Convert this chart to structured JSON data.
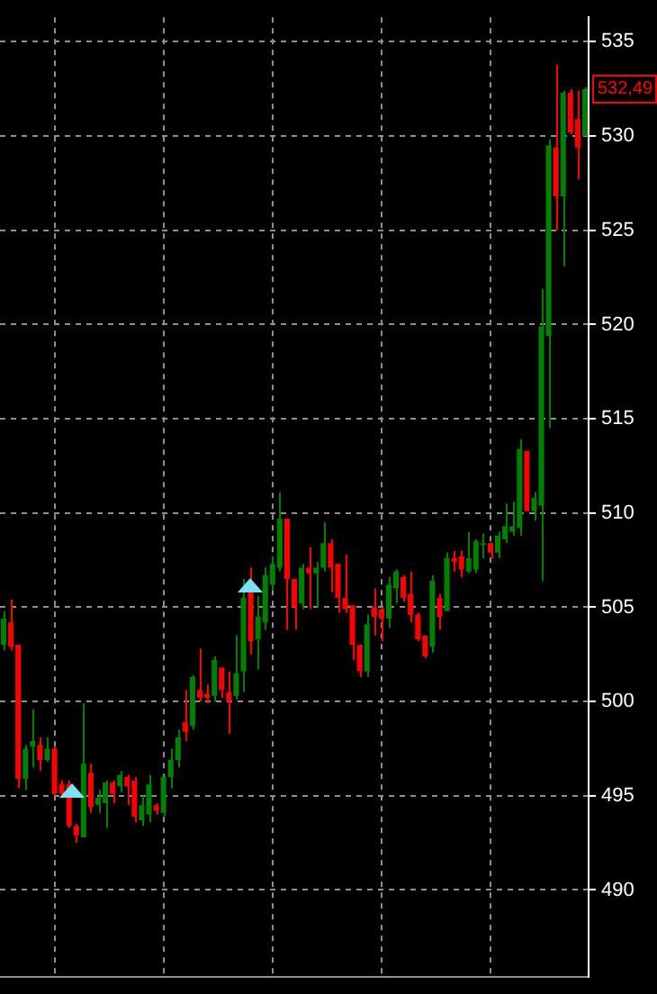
{
  "chart_data": {
    "type": "candlestick",
    "categories": [
      null,
      null,
      null,
      null,
      null,
      null,
      null,
      null,
      null,
      null,
      null,
      null,
      null,
      null,
      null,
      null,
      null,
      null,
      null,
      null,
      null,
      null,
      null,
      null,
      null,
      null,
      null,
      null,
      null,
      null,
      null,
      null,
      null,
      null,
      null,
      null,
      null,
      null,
      null,
      null,
      null,
      null,
      null,
      null,
      null,
      null,
      null,
      null,
      null,
      null,
      null,
      null,
      null,
      null,
      null,
      null,
      null,
      null,
      null,
      null,
      null,
      null,
      null,
      null,
      null,
      null,
      null,
      null,
      null,
      null,
      null,
      null,
      null,
      null,
      null,
      null,
      null,
      null,
      null,
      null,
      null
    ],
    "ohlc": [
      [
        503.0,
        504.8,
        502.7,
        504.4
      ],
      [
        504.2,
        505.4,
        502.7,
        502.9
      ],
      [
        503.0,
        503.0,
        495.4,
        495.9
      ],
      [
        495.9,
        497.7,
        495.3,
        497.5
      ],
      [
        497.6,
        499.6,
        496.5,
        497.9
      ],
      [
        497.7,
        498.1,
        496.3,
        496.9
      ],
      [
        496.9,
        498.1,
        496.8,
        497.5
      ],
      [
        497.5,
        497.6,
        495.0,
        495.1
      ],
      [
        495.6,
        495.8,
        495.0,
        495.1
      ],
      [
        495.6,
        495.8,
        493.3,
        493.4
      ],
      [
        493.4,
        493.5,
        492.5,
        492.9
      ],
      [
        492.8,
        499.9,
        492.8,
        496.7
      ],
      [
        496.2,
        496.7,
        494.1,
        494.4
      ],
      [
        494.5,
        495.3,
        494.1,
        494.9
      ],
      [
        494.6,
        495.8,
        493.3,
        495.7
      ],
      [
        495.7,
        495.8,
        494.6,
        495.1
      ],
      [
        495.5,
        496.3,
        495.2,
        496.1
      ],
      [
        496.0,
        496.1,
        494.5,
        495.5
      ],
      [
        495.8,
        496.0,
        493.6,
        493.9
      ],
      [
        493.7,
        495.0,
        493.4,
        494.5
      ],
      [
        494.0,
        496.1,
        493.6,
        495.6
      ],
      [
        494.5,
        494.6,
        494.0,
        494.2
      ],
      [
        494.1,
        496.1,
        493.9,
        496.0
      ],
      [
        496.0,
        497.5,
        495.4,
        496.9
      ],
      [
        496.9,
        498.5,
        496.5,
        498.1
      ],
      [
        498.9,
        500.6,
        497.9,
        498.4
      ],
      [
        498.7,
        501.4,
        498.5,
        501.3
      ],
      [
        500.6,
        502.8,
        500.0,
        500.2
      ],
      [
        500.4,
        500.9,
        499.9,
        500.2
      ],
      [
        500.3,
        502.4,
        500.0,
        502.2
      ],
      [
        501.8,
        501.8,
        500.2,
        500.6
      ],
      [
        500.5,
        501.6,
        498.3,
        500.0
      ],
      [
        500.3,
        503.5,
        500.1,
        501.5
      ],
      [
        501.6,
        506.5,
        500.5,
        505.5
      ],
      [
        505.9,
        507.1,
        502.5,
        503.2
      ],
      [
        503.3,
        505.6,
        501.7,
        504.5
      ],
      [
        504.2,
        507.1,
        503.8,
        506.7
      ],
      [
        506.2,
        507.7,
        505.9,
        507.3
      ],
      [
        507.1,
        511.1,
        506.9,
        509.7
      ],
      [
        509.7,
        509.7,
        503.8,
        506.5
      ],
      [
        506.5,
        506.5,
        503.8,
        505.0
      ],
      [
        505.2,
        507.3,
        504.9,
        507.1
      ],
      [
        507.1,
        508.2,
        504.9,
        506.8
      ],
      [
        506.8,
        507.4,
        505.0,
        507.1
      ],
      [
        507.1,
        509.5,
        506.9,
        508.4
      ],
      [
        508.4,
        508.6,
        505.8,
        507.1
      ],
      [
        507.3,
        507.3,
        504.7,
        505.5
      ],
      [
        505.5,
        507.8,
        504.7,
        504.9
      ],
      [
        505.1,
        505.1,
        502.2,
        503.0
      ],
      [
        503.0,
        503.0,
        501.3,
        501.6
      ],
      [
        501.6,
        504.6,
        501.3,
        504.1
      ],
      [
        505.0,
        506.0,
        503.5,
        504.5
      ],
      [
        504.9,
        505.0,
        503.2,
        504.4
      ],
      [
        504.4,
        506.6,
        503.9,
        506.2
      ],
      [
        506.0,
        507.0,
        505.2,
        506.9
      ],
      [
        506.6,
        506.7,
        505.3,
        505.5
      ],
      [
        505.7,
        506.9,
        504.2,
        504.6
      ],
      [
        504.6,
        504.7,
        503.2,
        503.3
      ],
      [
        503.5,
        503.5,
        502.3,
        502.4
      ],
      [
        502.9,
        506.7,
        502.6,
        506.4
      ],
      [
        505.5,
        505.7,
        503.8,
        504.5
      ],
      [
        504.8,
        507.9,
        504.8,
        507.6
      ],
      [
        507.6,
        508.0,
        506.9,
        507.4
      ],
      [
        507.7,
        508.0,
        506.6,
        507.0
      ],
      [
        506.9,
        509.0,
        506.8,
        507.6
      ],
      [
        507.0,
        508.6,
        506.8,
        508.5
      ],
      [
        508.3,
        508.9,
        507.6,
        508.4
      ],
      [
        508.4,
        508.4,
        507.6,
        507.9
      ],
      [
        507.9,
        509.0,
        507.6,
        508.8
      ],
      [
        508.6,
        510.5,
        508.4,
        509.3
      ],
      [
        509.0,
        510.6,
        508.8,
        509.3
      ],
      [
        509.2,
        513.9,
        508.8,
        513.4
      ],
      [
        513.3,
        513.3,
        510.1,
        510.1
      ],
      [
        510.1,
        511.1,
        509.6,
        510.8
      ],
      [
        510.4,
        521.9,
        506.4,
        519.9
      ],
      [
        519.4,
        529.8,
        514.5,
        529.5
      ],
      [
        529.4,
        533.8,
        525.0,
        526.8
      ],
      [
        526.8,
        532.4,
        523.1,
        532.3
      ],
      [
        532.3,
        532.5,
        530.1,
        530.2
      ],
      [
        530.9,
        532.4,
        527.7,
        529.4
      ],
      [
        530.0,
        532.6,
        530.0,
        532.49
      ]
    ],
    "colors": [
      "#008000",
      "#ff0000",
      "#ff0000",
      "#008000",
      "#008000",
      "#ff0000",
      "#008000",
      "#ff0000",
      "#ff0000",
      "#ff0000",
      "#ff0000",
      "#008000",
      "#ff0000",
      "#008000",
      "#008000",
      "#ff0000",
      "#008000",
      "#ff0000",
      "#ff0000",
      "#008000",
      "#008000",
      "#ff0000",
      "#008000",
      "#008000",
      "#008000",
      "#ff0000",
      "#008000",
      "#ff0000",
      "#ff0000",
      "#008000",
      "#ff0000",
      "#ff0000",
      "#008000",
      "#008000",
      "#ff0000",
      "#008000",
      "#008000",
      "#008000",
      "#008000",
      "#ff0000",
      "#ff0000",
      "#008000",
      "#ff0000",
      "#008000",
      "#008000",
      "#ff0000",
      "#ff0000",
      "#ff0000",
      "#ff0000",
      "#ff0000",
      "#008000",
      "#ff0000",
      "#ff0000",
      "#008000",
      "#008000",
      "#ff0000",
      "#ff0000",
      "#ff0000",
      "#ff0000",
      "#008000",
      "#ff0000",
      "#008000",
      "#ff0000",
      "#ff0000",
      "#008000",
      "#008000",
      "#008000",
      "#ff0000",
      "#008000",
      "#008000",
      "#008000",
      "#008000",
      "#ff0000",
      "#008000",
      "#008000",
      "#008000",
      "#ff0000",
      "#008000",
      "#ff0000",
      "#ff0000",
      "#008000"
    ],
    "ylim": [
      485.4,
      536.3
    ],
    "yticks": [
      490,
      495,
      500,
      505,
      510,
      515,
      520,
      525,
      530,
      535
    ],
    "grid": true,
    "tick_labels": "y",
    "annotations": [
      "532,49"
    ]
  }
}
